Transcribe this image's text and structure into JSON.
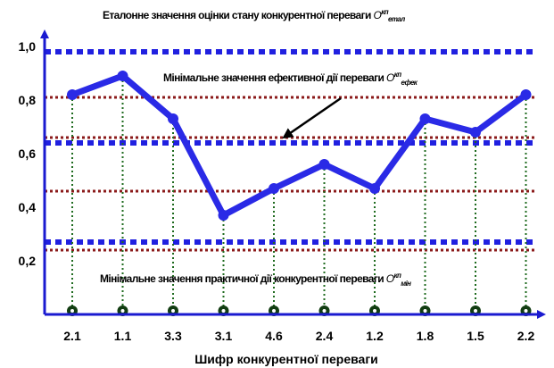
{
  "chart_data": {
    "type": "line",
    "title": {
      "prefix": "Еталонне значення оцінки стану конкурентної переваги ",
      "symbol": "O",
      "sup": "кп",
      "sub": "етал"
    },
    "xlabel": "Шифр конкурентної переваги",
    "ylabel": "",
    "categories": [
      "2.1",
      "1.1",
      "3.3",
      "3.1",
      "4.6",
      "2.4",
      "1.2",
      "1.8",
      "1.5",
      "2.2"
    ],
    "values": [
      0.82,
      0.89,
      0.73,
      0.37,
      0.47,
      0.56,
      0.47,
      0.73,
      0.68,
      0.82
    ],
    "yticks": [
      "1,0",
      "0,8",
      "0,6",
      "0,4",
      "0,2"
    ],
    "ytick_values": [
      1.0,
      0.8,
      0.6,
      0.4,
      0.2
    ],
    "ylim": [
      0.0,
      1.04
    ],
    "reference_lines": {
      "blue_dashed": [
        0.98,
        0.64,
        0.27
      ],
      "red_dotted": [
        0.81,
        0.66,
        0.46,
        0.24
      ]
    },
    "annotations": {
      "efek": {
        "prefix": "Мінімальне значення ефективної дії переваги ",
        "symbol": "O",
        "sup": "кп",
        "sub": "ефек"
      },
      "min": {
        "prefix": "Мінімальне значення практичної дії конкурентної переваги ",
        "symbol": "O",
        "sup": "кп",
        "sub": "мін"
      }
    },
    "colors": {
      "series": "#2a2ae6",
      "blue_dashed": "#2020e0",
      "red_dotted": "#8b1a1a",
      "drop_lines": "#1f6b1f",
      "base_markers": "#123d12",
      "axis": "#1a1ad0"
    },
    "grid": false
  }
}
